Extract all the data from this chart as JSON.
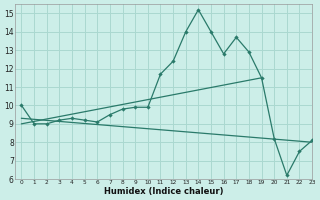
{
  "xlabel": "Humidex (Indice chaleur)",
  "ylabel": "",
  "bg_color": "#cceee8",
  "grid_color": "#aad8d0",
  "line_color": "#2a7a6a",
  "xlim": [
    -0.5,
    23
  ],
  "ylim": [
    6,
    15.5
  ],
  "xticks": [
    0,
    1,
    2,
    3,
    4,
    5,
    6,
    7,
    8,
    9,
    10,
    11,
    12,
    13,
    14,
    15,
    16,
    17,
    18,
    19,
    20,
    21,
    22,
    23
  ],
  "yticks": [
    6,
    7,
    8,
    9,
    10,
    11,
    12,
    13,
    14,
    15
  ],
  "line1_x": [
    0,
    1,
    2,
    3,
    4,
    5,
    6,
    7,
    8,
    9,
    10,
    11,
    12,
    13,
    14,
    15,
    16,
    17,
    18,
    19,
    20,
    21,
    22,
    23
  ],
  "line1_y": [
    10.0,
    9.0,
    9.0,
    9.2,
    9.3,
    9.2,
    9.1,
    9.5,
    9.8,
    9.9,
    9.9,
    11.7,
    12.4,
    14.0,
    15.2,
    14.0,
    12.8,
    13.7,
    12.9,
    11.5,
    8.2,
    6.2,
    7.5,
    8.1
  ],
  "line2_x": [
    0,
    19
  ],
  "line2_y": [
    9.0,
    11.5
  ],
  "line3_x": [
    0,
    23
  ],
  "line3_y": [
    9.3,
    8.0
  ]
}
